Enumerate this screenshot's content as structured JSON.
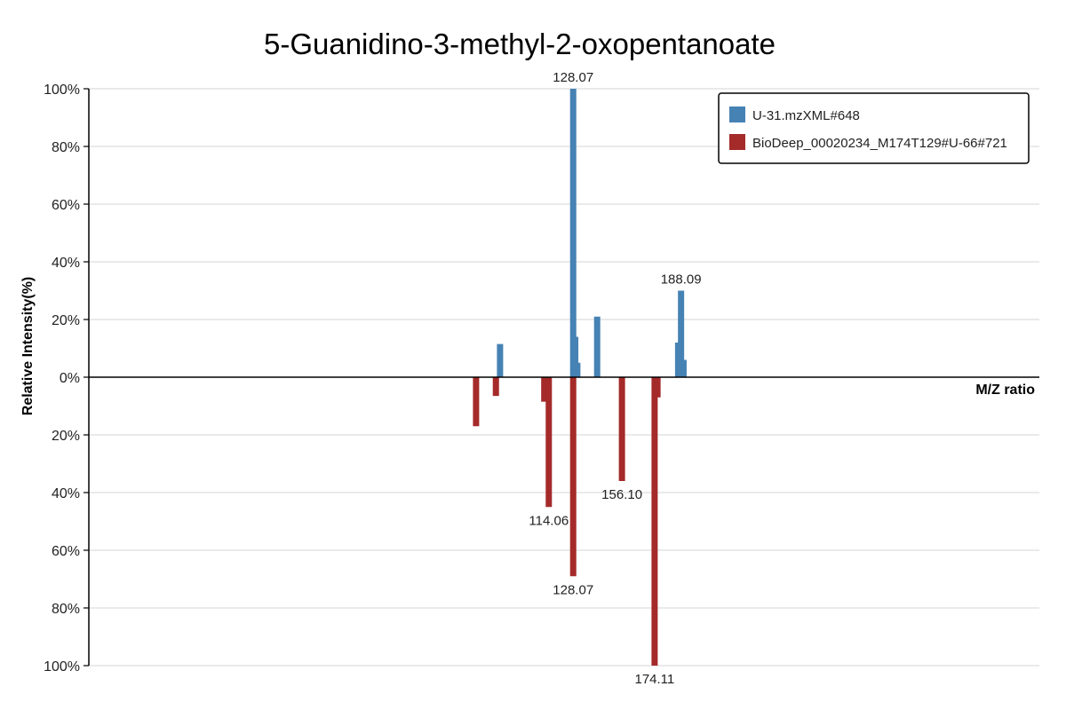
{
  "chart_data": {
    "type": "bar",
    "title": "5-Guanidino-3-methyl-2-oxopentanoate",
    "xlabel": "M/Z ratio",
    "ylabel": "Relative Intensity(%)",
    "ylim": [
      -100,
      100
    ],
    "yticks": [
      {
        "value": 100,
        "label": "100%"
      },
      {
        "value": 80,
        "label": "80%"
      },
      {
        "value": 60,
        "label": "60%"
      },
      {
        "value": 40,
        "label": "40%"
      },
      {
        "value": 20,
        "label": "20%"
      },
      {
        "value": 0,
        "label": "0%"
      },
      {
        "value": -20,
        "label": "20%"
      },
      {
        "value": -40,
        "label": "40%"
      },
      {
        "value": -60,
        "label": "60%"
      },
      {
        "value": -80,
        "label": "80%"
      },
      {
        "value": -100,
        "label": "100%"
      }
    ],
    "xlim": [
      0,
      230
    ],
    "grid": true,
    "legend_position": "top-right",
    "series": [
      {
        "name": "U-31.mzXML#648",
        "color": "#4682B4",
        "direction": "up",
        "peaks": [
          {
            "mz": 99.5,
            "intensity": 11.5
          },
          {
            "mz": 117.2,
            "intensity": 100,
            "label": "128.07"
          },
          {
            "mz": 117.7,
            "intensity": 14
          },
          {
            "mz": 118.2,
            "intensity": 5
          },
          {
            "mz": 123.0,
            "intensity": 21
          },
          {
            "mz": 142.6,
            "intensity": 12
          },
          {
            "mz": 143.3,
            "intensity": 30,
            "label": "188.09"
          },
          {
            "mz": 143.9,
            "intensity": 6
          }
        ]
      },
      {
        "name": "BioDeep_00020234_M174T129#U-66#721",
        "color": "#A52A2A",
        "direction": "down",
        "peaks": [
          {
            "mz": 93.7,
            "intensity": 17
          },
          {
            "mz": 98.5,
            "intensity": 6.5
          },
          {
            "mz": 110.2,
            "intensity": 8.5
          },
          {
            "mz": 111.3,
            "intensity": 45,
            "label": "114.06"
          },
          {
            "mz": 117.2,
            "intensity": 69,
            "label": "128.07"
          },
          {
            "mz": 129.0,
            "intensity": 36,
            "label": "156.10"
          },
          {
            "mz": 136.9,
            "intensity": 100,
            "label": "174.11"
          },
          {
            "mz": 137.6,
            "intensity": 7
          }
        ]
      }
    ]
  }
}
